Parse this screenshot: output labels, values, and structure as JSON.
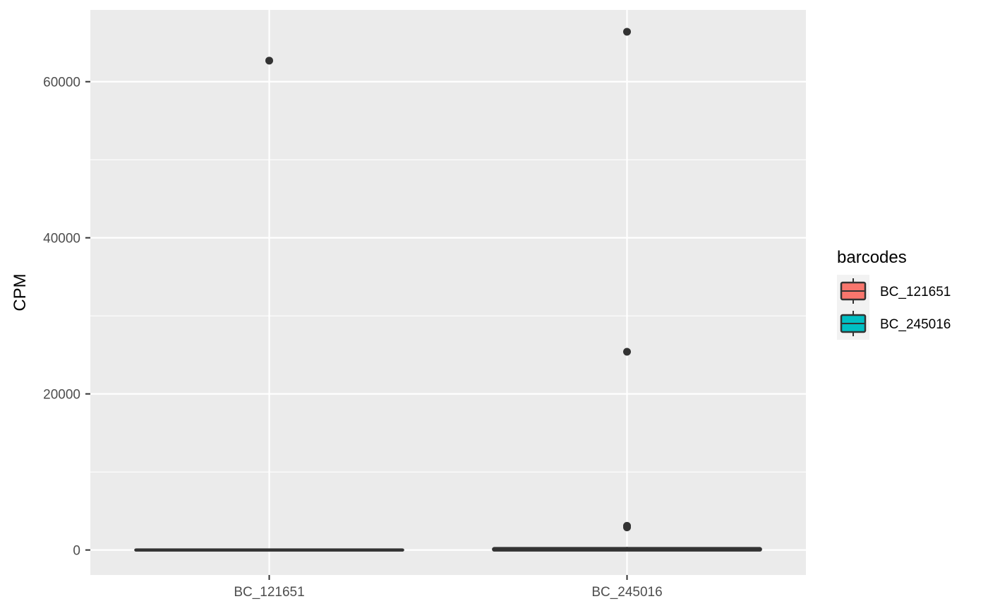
{
  "chart_data": {
    "type": "box",
    "ylabel": "CPM",
    "xlabel": "",
    "categories": [
      "BC_121651",
      "BC_245016"
    ],
    "ylim": [
      -3200,
      69200
    ],
    "yticks": [
      0,
      20000,
      40000,
      60000
    ],
    "grid": true,
    "series": [
      {
        "name": "BC_121651",
        "color": "#F8766D",
        "box": {
          "min": 0,
          "q1": 0,
          "median": 0,
          "q3": 0,
          "max": 0
        },
        "outliers": [
          62700
        ]
      },
      {
        "name": "BC_245016",
        "color": "#00BFC4",
        "box": {
          "min": 0,
          "q1": 0,
          "median": 60,
          "q3": 180,
          "max": 400
        },
        "outliers": [
          66400,
          25400,
          3100,
          2900
        ]
      }
    ],
    "legend": {
      "title": "barcodes",
      "position": "right"
    }
  }
}
